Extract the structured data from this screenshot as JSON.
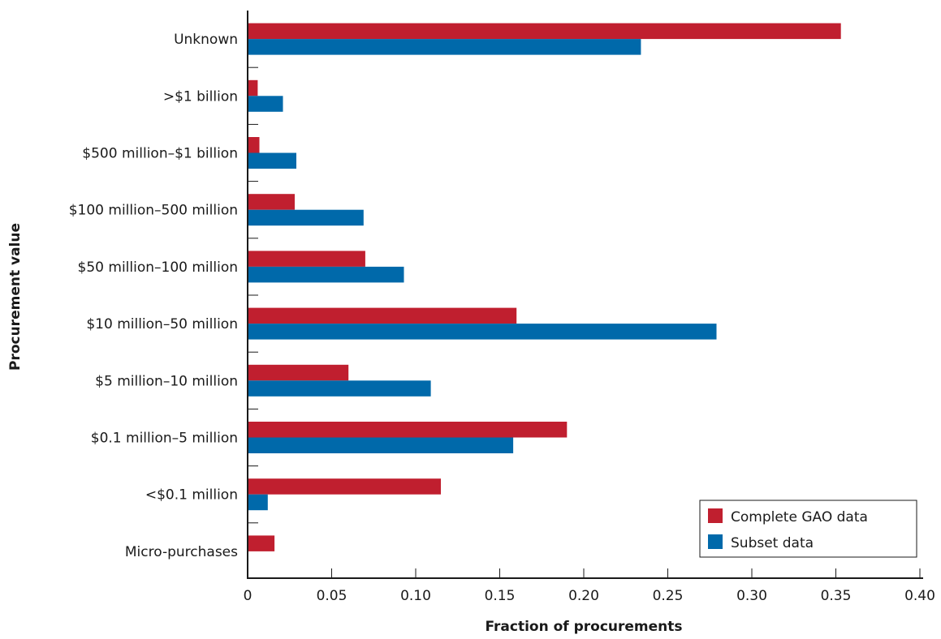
{
  "chart_data": {
    "type": "bar",
    "orientation": "horizontal",
    "title": "",
    "xlabel": "Fraction of procurements",
    "ylabel": "Procurement value",
    "xlim": [
      0,
      0.4
    ],
    "x_ticks": [
      0,
      0.05,
      0.1,
      0.15,
      0.2,
      0.25,
      0.3,
      0.35,
      0.4
    ],
    "x_tick_labels": [
      "0",
      "0.05",
      "0.10",
      "0.15",
      "0.20",
      "0.25",
      "0.30",
      "0.35",
      "0.40"
    ],
    "categories": [
      "Unknown",
      ">$1 billion",
      "$500 million–$1 billion",
      "$100 million–500 million",
      "$50 million–100 million",
      "$10 million–50 million",
      "$5 million–10 million",
      "$0.1 million–5 million",
      "<$0.1 million",
      "Micro-purchases"
    ],
    "series": [
      {
        "name": "Complete GAO data",
        "color": "#c01f2f",
        "values": [
          0.353,
          0.006,
          0.007,
          0.028,
          0.07,
          0.16,
          0.06,
          0.19,
          0.115,
          0.016
        ]
      },
      {
        "name": "Subset data",
        "color": "#0069aa",
        "values": [
          0.234,
          0.021,
          0.029,
          0.069,
          0.093,
          0.279,
          0.109,
          0.158,
          0.012,
          0.0
        ]
      }
    ],
    "grid": false,
    "legend_position": "bottom-right"
  }
}
